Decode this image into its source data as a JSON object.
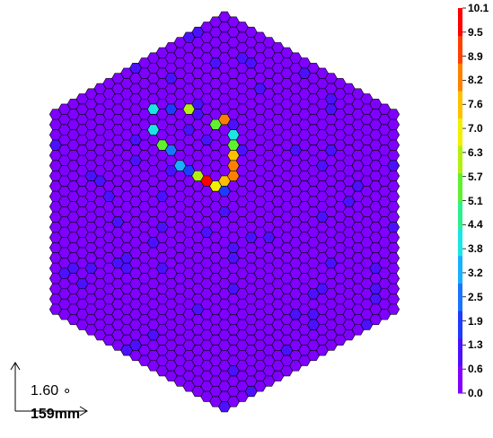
{
  "chart_data": {
    "type": "heatmap",
    "geometry": "hexagonal camera, hexagonal pixels",
    "hex_rings": 19,
    "colorbar": {
      "ticks": [
        "10.1",
        "9.5",
        "8.9",
        "8.2",
        "7.6",
        "7.0",
        "6.3",
        "5.7",
        "5.1",
        "4.4",
        "3.8",
        "3.2",
        "2.5",
        "1.9",
        "1.3",
        "0.6",
        "0.0"
      ],
      "min": 0.0,
      "max": 10.1,
      "palette": [
        "#7f00ff",
        "#4d10ff",
        "#1f3bff",
        "#1b74ff",
        "#18b0ff",
        "#1ae6e6",
        "#2df08c",
        "#60f030",
        "#b3f010",
        "#f0f000",
        "#ffc000",
        "#ff8000",
        "#ff4000",
        "#ff0000"
      ]
    },
    "background_values": {
      "base": 0.0,
      "variation": [
        0.0,
        1.3
      ]
    },
    "ring_feature": {
      "center_col": -3,
      "center_row": -5,
      "radius_cells": 4,
      "points": [
        {
          "col": -1,
          "row": -8,
          "value": 5.6
        },
        {
          "col": -4,
          "row": -8,
          "value": 6.9
        },
        {
          "col": 0,
          "row": -9,
          "value": 8.6
        },
        {
          "col": 1,
          "row": -8,
          "value": 4.6
        },
        {
          "col": 1,
          "row": -7,
          "value": 6.1
        },
        {
          "col": 1,
          "row": -6,
          "value": 8.0
        },
        {
          "col": 1,
          "row": -5,
          "value": 8.9
        },
        {
          "col": 1,
          "row": -4,
          "value": 9.3
        },
        {
          "col": 0,
          "row": -3,
          "value": 8.3
        },
        {
          "col": -1,
          "row": -2,
          "value": 7.0
        },
        {
          "col": -2,
          "row": -2,
          "value": 10.1
        },
        {
          "col": -3,
          "row": -2,
          "value": 6.5
        },
        {
          "col": -4,
          "row": -2,
          "value": 2.0
        },
        {
          "col": -5,
          "row": -2,
          "value": 3.6
        },
        {
          "col": -6,
          "row": -3,
          "value": 2.4
        },
        {
          "col": -7,
          "row": -3,
          "value": 6.0
        },
        {
          "col": -8,
          "row": -4,
          "value": 4.1
        },
        {
          "col": -8,
          "row": -6,
          "value": 4.0
        },
        {
          "col": -6,
          "row": -7,
          "value": 1.8
        },
        {
          "col": 0,
          "row": -2,
          "value": 1.6
        }
      ]
    }
  },
  "scale": {
    "angle_label": "1.60 ∘",
    "length_label": "159mm"
  }
}
